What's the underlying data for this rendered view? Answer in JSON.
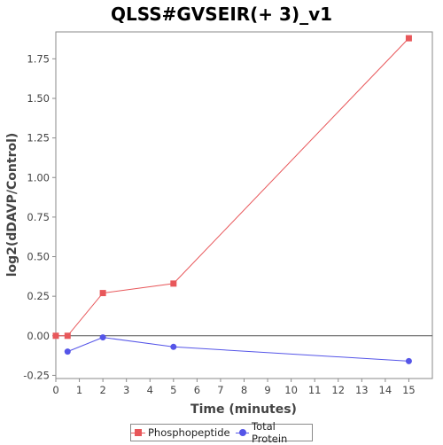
{
  "chart_data": {
    "type": "line",
    "title": "QLSS#GVSEIR(+ 3)_v1",
    "xlabel": "Time (minutes)",
    "ylabel": "log2(dDAVP/Control)",
    "xlim": [
      0,
      16
    ],
    "ylim": [
      -0.27,
      1.92
    ],
    "x_ticks": [
      0,
      1,
      2,
      3,
      4,
      5,
      6,
      7,
      8,
      9,
      10,
      11,
      12,
      13,
      14,
      15
    ],
    "y_ticks": [
      -0.25,
      0.0,
      0.25,
      0.5,
      0.75,
      1.0,
      1.25,
      1.5,
      1.75
    ],
    "y_tick_labels": [
      "-0.25",
      "0.00",
      "0.25",
      "0.50",
      "0.75",
      "1.00",
      "1.25",
      "1.50",
      "1.75"
    ],
    "grid": false,
    "zero_line": true,
    "legend_placement": "bottom-center",
    "series": [
      {
        "name": "Phosphopeptide",
        "color": "#e8575a",
        "marker": "square",
        "x": [
          0,
          0.5,
          2,
          5,
          15
        ],
        "y": [
          0.0,
          0.0,
          0.27,
          0.33,
          1.88
        ]
      },
      {
        "name": "Total Protein",
        "color": "#5555e8",
        "marker": "circle",
        "x": [
          0.5,
          2,
          5,
          15
        ],
        "y": [
          -0.1,
          -0.01,
          -0.07,
          -0.16
        ]
      }
    ]
  }
}
